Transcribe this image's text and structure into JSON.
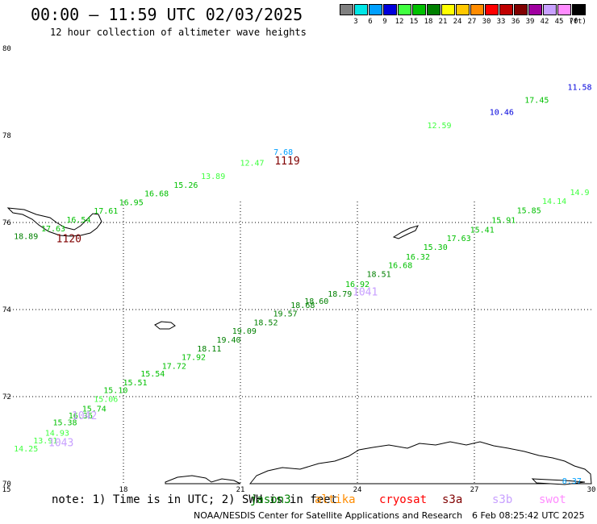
{
  "header": {
    "title": "00:00 – 11:59 UTC 02/03/2025",
    "subtitle": "12 hour collection of altimeter wave heights"
  },
  "colorbar": {
    "unit": "(ft)",
    "swatches": [
      {
        "color": "#808080",
        "label": "3"
      },
      {
        "color": "#00e6e6",
        "label": "6"
      },
      {
        "color": "#00a0ff",
        "label": "9"
      },
      {
        "color": "#0000dc",
        "label": "12"
      },
      {
        "color": "#40ff40",
        "label": "15"
      },
      {
        "color": "#00c000",
        "label": "18"
      },
      {
        "color": "#008000",
        "label": "21"
      },
      {
        "color": "#ffff00",
        "label": "24"
      },
      {
        "color": "#ffc800",
        "label": "27"
      },
      {
        "color": "#ff8c00",
        "label": "30"
      },
      {
        "color": "#ff0000",
        "label": "33"
      },
      {
        "color": "#c00000",
        "label": "36"
      },
      {
        "color": "#800000",
        "label": "39"
      },
      {
        "color": "#a000a0",
        "label": "42"
      },
      {
        "color": "#c8a0ff",
        "label": "45"
      },
      {
        "color": "#ff8cff",
        "label": "70"
      },
      {
        "color": "#000000",
        "label": ""
      }
    ]
  },
  "chart_data": {
    "type": "scatter",
    "title": "00:00 – 11:59 UTC 02/03/2025",
    "subtitle": "12 hour collection of altimeter wave heights",
    "xlim": [
      15,
      30
    ],
    "ylim": [
      70,
      80
    ],
    "xticks": [
      "15",
      "18",
      "21",
      "24",
      "27",
      "30"
    ],
    "yticks": [
      "70",
      "72",
      "74",
      "76",
      "78",
      "80"
    ],
    "grid": true,
    "unit": "ft",
    "points": [
      {
        "x": 15.5,
        "y": 70.74,
        "v": "14.25",
        "c": "#40ff40"
      },
      {
        "x": 16.0,
        "y": 70.93,
        "v": "13.91",
        "c": "#40ff40"
      },
      {
        "x": 16.3,
        "y": 71.1,
        "v": "14.93",
        "c": "#40ff40"
      },
      {
        "x": 16.5,
        "y": 71.34,
        "v": "15.38",
        "c": "#00c000"
      },
      {
        "x": 16.9,
        "y": 71.5,
        "v": "16.36",
        "c": "#00c000"
      },
      {
        "x": 17.25,
        "y": 71.66,
        "v": "15.74",
        "c": "#00c000"
      },
      {
        "x": 17.55,
        "y": 71.88,
        "v": "15.06",
        "c": "#40ff40"
      },
      {
        "x": 17.8,
        "y": 72.08,
        "v": "15.10",
        "c": "#00c000"
      },
      {
        "x": 18.3,
        "y": 72.26,
        "v": "15.51",
        "c": "#00c000"
      },
      {
        "x": 18.75,
        "y": 72.46,
        "v": "15.54",
        "c": "#00c000"
      },
      {
        "x": 19.3,
        "y": 72.64,
        "v": "17.72",
        "c": "#00c000"
      },
      {
        "x": 19.8,
        "y": 72.84,
        "v": "17.92",
        "c": "#00c000"
      },
      {
        "x": 20.2,
        "y": 73.04,
        "v": "18.11",
        "c": "#008000"
      },
      {
        "x": 20.7,
        "y": 73.24,
        "v": "19.40",
        "c": "#008000"
      },
      {
        "x": 21.1,
        "y": 73.44,
        "v": "19.09",
        "c": "#008000"
      },
      {
        "x": 21.65,
        "y": 73.64,
        "v": "18.52",
        "c": "#008000"
      },
      {
        "x": 22.15,
        "y": 73.84,
        "v": "19.57",
        "c": "#008000"
      },
      {
        "x": 22.6,
        "y": 74.04,
        "v": "18.68",
        "c": "#008000"
      },
      {
        "x": 22.95,
        "y": 74.13,
        "v": "18.60",
        "c": "#008000"
      },
      {
        "x": 23.55,
        "y": 74.3,
        "v": "18.79",
        "c": "#008000"
      },
      {
        "x": 24.0,
        "y": 74.52,
        "v": "16.92",
        "c": "#00c000"
      },
      {
        "x": 24.55,
        "y": 74.75,
        "v": "18.51",
        "c": "#008000"
      },
      {
        "x": 25.1,
        "y": 74.95,
        "v": "16.68",
        "c": "#00c000"
      },
      {
        "x": 25.55,
        "y": 75.15,
        "v": "16.32",
        "c": "#00c000"
      },
      {
        "x": 26.0,
        "y": 75.37,
        "v": "15.30",
        "c": "#00c000"
      },
      {
        "x": 26.6,
        "y": 75.57,
        "v": "17.63",
        "c": "#00c000"
      },
      {
        "x": 27.2,
        "y": 75.77,
        "v": "15.41",
        "c": "#00c000"
      },
      {
        "x": 27.75,
        "y": 75.99,
        "v": "15.91",
        "c": "#00c000"
      },
      {
        "x": 28.4,
        "y": 76.21,
        "v": "15.85",
        "c": "#00c000"
      },
      {
        "x": 29.05,
        "y": 76.43,
        "v": "14.14",
        "c": "#40ff40"
      },
      {
        "x": 29.7,
        "y": 76.63,
        "v": "14.9",
        "c": "#40ff40"
      },
      {
        "x": 15.5,
        "y": 75.62,
        "v": "18.89",
        "c": "#008000"
      },
      {
        "x": 16.2,
        "y": 75.8,
        "v": "17.63",
        "c": "#00c000"
      },
      {
        "x": 16.85,
        "y": 76.0,
        "v": "16.54",
        "c": "#00c000"
      },
      {
        "x": 17.55,
        "y": 76.2,
        "v": "17.61",
        "c": "#00c000"
      },
      {
        "x": 18.2,
        "y": 76.4,
        "v": "16.95",
        "c": "#00c000"
      },
      {
        "x": 18.85,
        "y": 76.6,
        "v": "16.68",
        "c": "#00c000"
      },
      {
        "x": 19.6,
        "y": 76.8,
        "v": "15.26",
        "c": "#00c000"
      },
      {
        "x": 20.3,
        "y": 77.0,
        "v": "13.89",
        "c": "#40ff40"
      },
      {
        "x": 21.3,
        "y": 77.31,
        "v": "12.47",
        "c": "#40ff40"
      },
      {
        "x": 22.1,
        "y": 77.56,
        "v": "7.68",
        "c": "#00a0ff"
      },
      {
        "x": 26.1,
        "y": 78.17,
        "v": "12.59",
        "c": "#40ff40"
      },
      {
        "x": 27.7,
        "y": 78.47,
        "v": "10.46",
        "c": "#0000dc"
      },
      {
        "x": 28.6,
        "y": 78.75,
        "v": "17.45",
        "c": "#00c000"
      },
      {
        "x": 29.7,
        "y": 79.05,
        "v": "11.58",
        "c": "#0000dc"
      },
      {
        "x": 29.5,
        "y": 70.0,
        "v": "8.37",
        "c": "#00a0ff"
      }
    ],
    "pass_labels": [
      {
        "x": 16.6,
        "y": 75.55,
        "text": "1120",
        "c": "#800000"
      },
      {
        "x": 22.2,
        "y": 77.33,
        "text": "1119",
        "c": "#800000"
      },
      {
        "x": 24.2,
        "y": 74.32,
        "text": "1041",
        "c": "#c8a0ff"
      },
      {
        "x": 17.0,
        "y": 71.48,
        "text": "1042",
        "c": "#c8a0ff"
      },
      {
        "x": 16.4,
        "y": 70.86,
        "text": "1043",
        "c": "#c8a0ff"
      }
    ]
  },
  "footer": {
    "note": "note: 1) Time is in UTC; 2) SWH is in feet",
    "legend": [
      {
        "label": "jason3",
        "color": "#008000"
      },
      {
        "label": "altika",
        "color": "#ff8c00"
      },
      {
        "label": "cryosat",
        "color": "#ff0000"
      },
      {
        "label": "s3a",
        "color": "#800000"
      },
      {
        "label": "s3b",
        "color": "#c8a0ff"
      },
      {
        "label": "swot",
        "color": "#ff8cff"
      }
    ],
    "credit": "NOAA/NESDIS Center for Satellite Applications and Research",
    "stamp": "6 Feb 08:25:42 UTC 2025"
  }
}
